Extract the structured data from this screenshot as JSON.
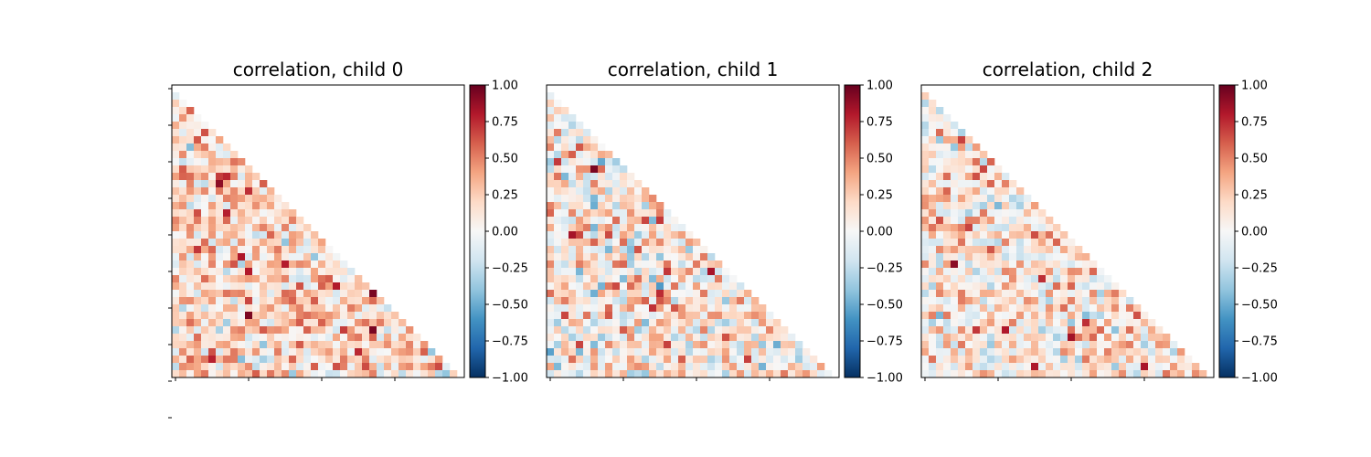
{
  "chart_data": [
    {
      "type": "heatmap",
      "title": "correlation, child 0",
      "grid": false,
      "mask": "lower-triangle",
      "n": 40,
      "seed": 11,
      "bias": 0.18,
      "spread": 0.28,
      "vmin": -1.0,
      "vmax": 1.0,
      "colormap": "RdBu_r",
      "colorbar_ticks": [
        "1.00",
        "0.75",
        "0.50",
        "0.25",
        "0.00",
        "−0.25",
        "−0.50",
        "−0.75",
        "−1.00"
      ],
      "x_tick_labels": [
        "",
        "",
        "",
        ""
      ],
      "y_tick_labels": [
        "",
        "",
        "",
        "",
        "",
        "",
        "",
        "",
        "",
        ""
      ]
    },
    {
      "type": "heatmap",
      "title": "correlation, child 1",
      "grid": false,
      "mask": "lower-triangle",
      "n": 40,
      "seed": 23,
      "bias": 0.08,
      "spread": 0.32,
      "vmin": -1.0,
      "vmax": 1.0,
      "colormap": "RdBu_r",
      "colorbar_ticks": [
        "1.00",
        "0.75",
        "0.50",
        "0.25",
        "0.00",
        "−0.25",
        "−0.50",
        "−0.75",
        "−1.00"
      ],
      "x_tick_labels": [
        "",
        "",
        "",
        ""
      ],
      "y_tick_labels": []
    },
    {
      "type": "heatmap",
      "title": "correlation, child 2",
      "grid": false,
      "mask": "lower-triangle",
      "n": 40,
      "seed": 37,
      "bias": 0.1,
      "spread": 0.28,
      "vmin": -1.0,
      "vmax": 1.0,
      "colormap": "RdBu_r",
      "colorbar_ticks": [
        "1.00",
        "0.75",
        "0.50",
        "0.25",
        "0.00",
        "−0.25",
        "−0.50",
        "−0.75",
        "−1.00"
      ],
      "x_tick_labels": [
        "",
        "",
        "",
        ""
      ],
      "y_tick_labels": []
    }
  ]
}
